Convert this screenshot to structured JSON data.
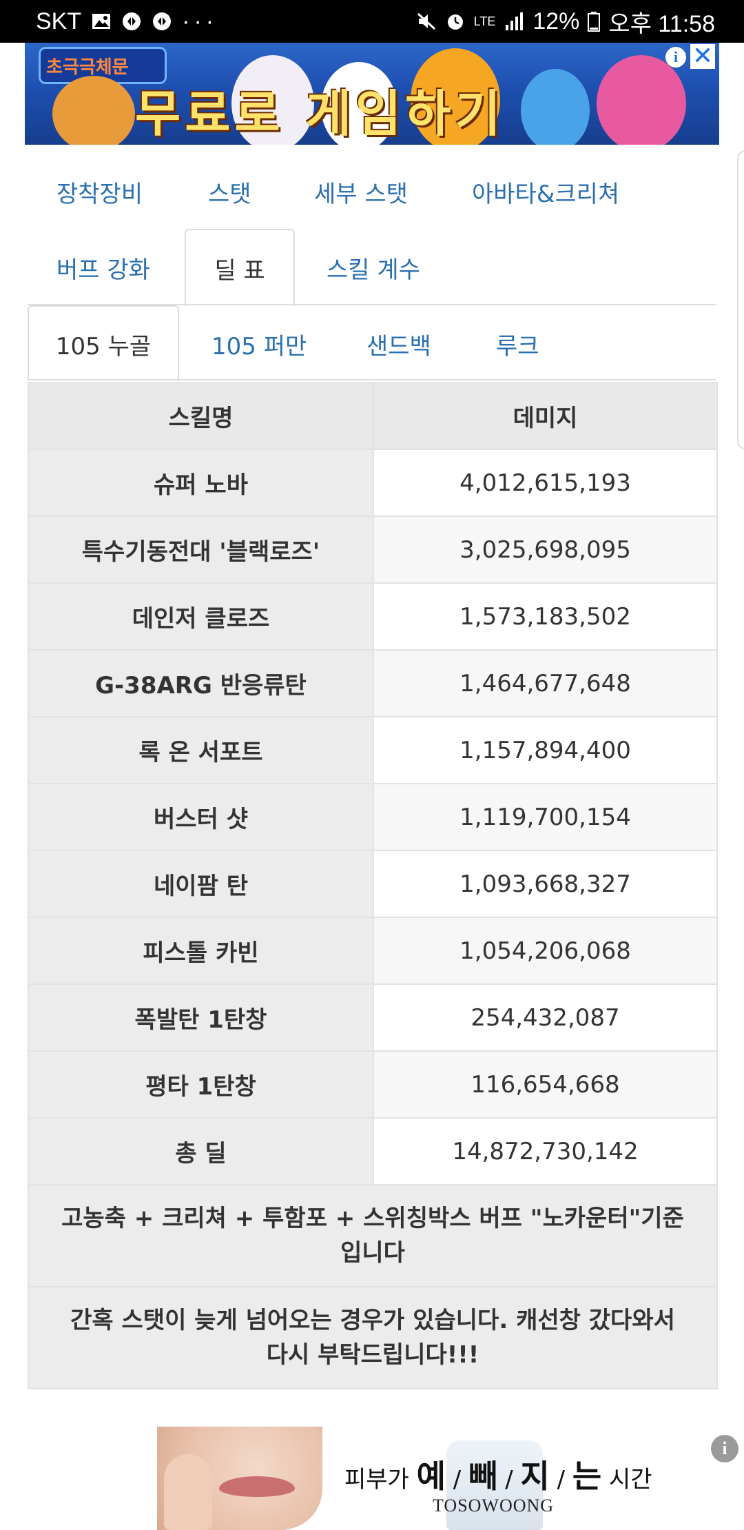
{
  "status_bar": {
    "carrier": "SKT",
    "battery": "12%",
    "time": "오후 11:58",
    "network": "LTE",
    "dots": "···"
  },
  "ad_top": {
    "logo_text": "초극극체문",
    "headline": "무료로 게임하기",
    "info_icon": "info-icon",
    "close_icon": "close-icon"
  },
  "tabs_main": {
    "row1": [
      "장착장비",
      "스탯",
      "세부 스탯",
      "아바타&크리쳐"
    ],
    "row2": [
      "버프 강화",
      "딜 표",
      "스킬 계수"
    ],
    "active": "딜 표"
  },
  "tabs_sub": {
    "items": [
      "105 누골",
      "105 퍼만",
      "샌드백",
      "루크"
    ],
    "active": "105 누골"
  },
  "table": {
    "headers": {
      "skill": "스킬명",
      "damage": "데미지"
    },
    "rows": [
      {
        "skill": "슈퍼 노바",
        "damage": "4,012,615,193"
      },
      {
        "skill": "특수기동전대 '블랙로즈'",
        "damage": "3,025,698,095"
      },
      {
        "skill": "데인저 클로즈",
        "damage": "1,573,183,502"
      },
      {
        "skill": "G-38ARG 반응류탄",
        "damage": "1,464,677,648"
      },
      {
        "skill": "록 온 서포트",
        "damage": "1,157,894,400"
      },
      {
        "skill": "버스터 샷",
        "damage": "1,119,700,154"
      },
      {
        "skill": "네이팜 탄",
        "damage": "1,093,668,327"
      },
      {
        "skill": "피스톨 카빈",
        "damage": "1,054,206,068"
      },
      {
        "skill": "폭발탄 1탄창",
        "damage": "254,432,087"
      },
      {
        "skill": "평타 1탄창",
        "damage": "116,654,668"
      },
      {
        "skill": "총 딜",
        "damage": "14,872,730,142"
      }
    ],
    "notes": [
      "고농축 + 크리쳐 + 투함포 + 스위칭박스 버프 \"노카운터\"기준입니다",
      "간혹 스탯이 늦게 넘어오는 경우가 있습니다. 캐선창 갔다와서 다시 부탁드립니다!!!"
    ]
  },
  "ad_bottom": {
    "text_pre": "피부가 ",
    "t1": "예",
    "t2": "빼",
    "t3": "지",
    "t4": "는",
    "text_post": " 시간!",
    "brand": "TOSOWOONG",
    "info_icon": "info-icon"
  }
}
